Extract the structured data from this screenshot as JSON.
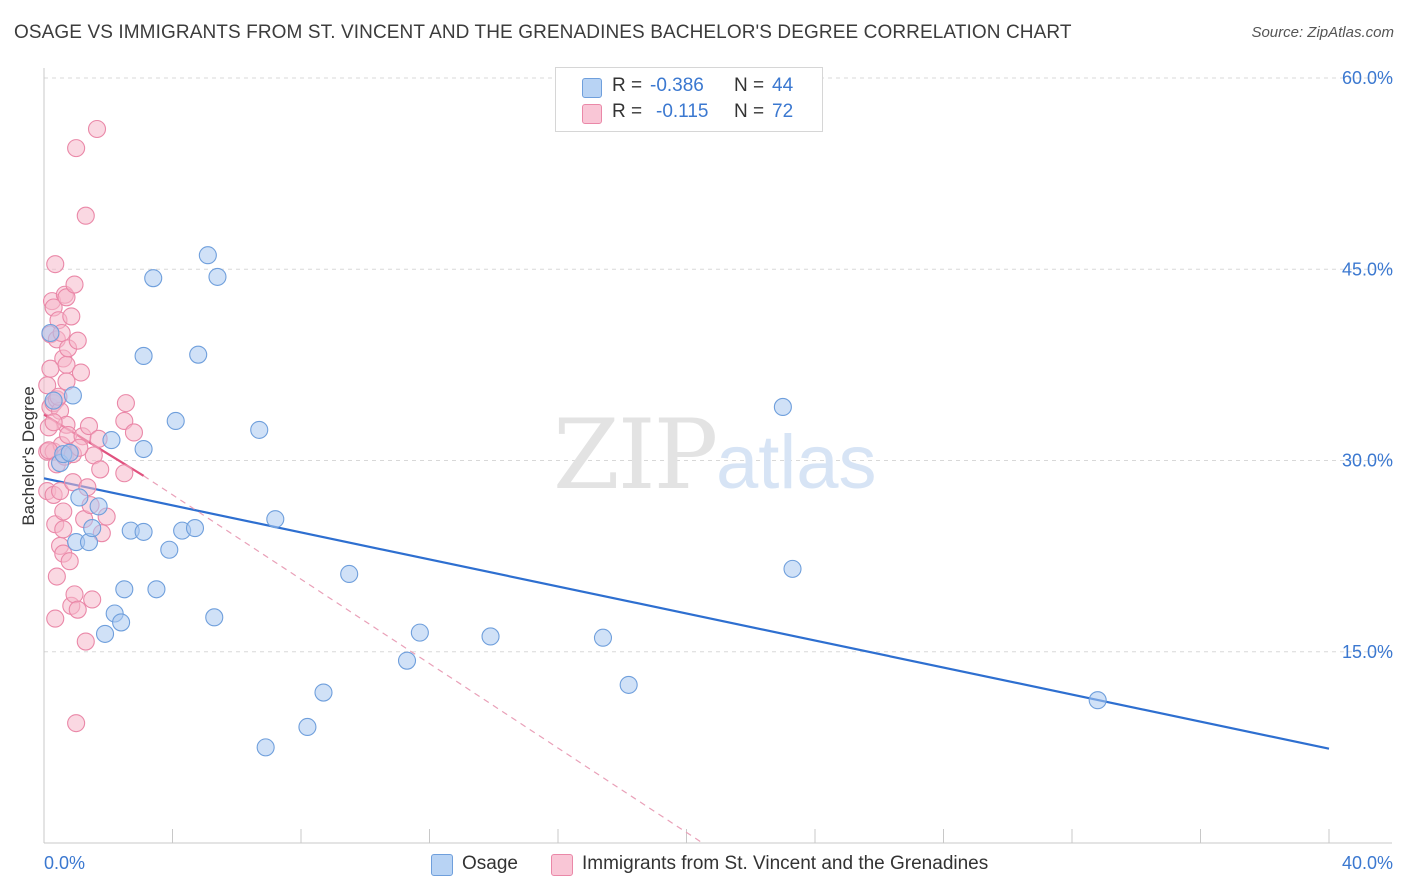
{
  "header": {
    "title": "OSAGE VS IMMIGRANTS FROM ST. VINCENT AND THE GRENADINES BACHELOR'S DEGREE CORRELATION CHART",
    "source": "Source: ZipAtlas.com"
  },
  "watermark": {
    "zip": "ZIP",
    "atlas": "atlas"
  },
  "legend": {
    "rows": [
      {
        "r_label": "R =",
        "r_value": "-0.386",
        "n_label": "N =",
        "n_value": "44"
      },
      {
        "r_label": "R =",
        "r_value": "-0.115",
        "n_label": "N =",
        "n_value": "72"
      }
    ]
  },
  "bottom_legend": {
    "osage": "Osage",
    "immigrants": "Immigrants from St. Vincent and the Grenadines"
  },
  "colors": {
    "osage_fill": "#a9c8f0",
    "osage_stroke": "#6f9fdc",
    "osage_line": "#2e6fd0",
    "imm_fill": "#f6b8cb",
    "imm_stroke": "#ea88a8",
    "imm_line": "#e0527f",
    "tick_text": "#3b78d0",
    "grid": "#d8d8d8"
  },
  "chart_data": {
    "type": "scatter",
    "title": "OSAGE VS IMMIGRANTS FROM ST. VINCENT AND THE GRENADINES BACHELOR'S DEGREE CORRELATION CHART",
    "xlabel": "",
    "ylabel": "Bachelor's Degree",
    "xlim": [
      0,
      40
    ],
    "ylim": [
      0,
      62
    ],
    "x_tick_labels": [
      "0.0%",
      "40.0%"
    ],
    "y_ticks": [
      15,
      30,
      45,
      60
    ],
    "y_tick_labels": [
      "15.0%",
      "30.0%",
      "45.0%",
      "60.0%"
    ],
    "grid": true,
    "legend_position": "top-center",
    "series": [
      {
        "name": "Osage",
        "r": -0.386,
        "n": 44,
        "trend": [
          [
            0,
            28.6
          ],
          [
            40,
            7.4
          ]
        ],
        "points": [
          [
            0.2,
            40.0
          ],
          [
            0.3,
            34.7
          ],
          [
            0.5,
            29.8
          ],
          [
            0.6,
            30.5
          ],
          [
            0.8,
            30.6
          ],
          [
            0.9,
            35.1
          ],
          [
            1.0,
            23.6
          ],
          [
            1.1,
            27.1
          ],
          [
            1.4,
            23.6
          ],
          [
            1.5,
            24.7
          ],
          [
            1.7,
            26.4
          ],
          [
            1.9,
            16.4
          ],
          [
            2.1,
            31.6
          ],
          [
            2.2,
            18.0
          ],
          [
            2.4,
            17.3
          ],
          [
            2.5,
            19.9
          ],
          [
            2.7,
            24.5
          ],
          [
            3.1,
            38.2
          ],
          [
            3.1,
            24.4
          ],
          [
            3.1,
            30.9
          ],
          [
            3.4,
            44.3
          ],
          [
            3.5,
            19.9
          ],
          [
            3.9,
            23.0
          ],
          [
            4.1,
            33.1
          ],
          [
            4.3,
            24.5
          ],
          [
            4.7,
            24.7
          ],
          [
            4.8,
            38.3
          ],
          [
            5.1,
            46.1
          ],
          [
            5.3,
            17.7
          ],
          [
            5.4,
            44.4
          ],
          [
            6.7,
            32.4
          ],
          [
            6.9,
            7.5
          ],
          [
            7.2,
            25.4
          ],
          [
            8.2,
            9.1
          ],
          [
            8.7,
            11.8
          ],
          [
            9.5,
            21.1
          ],
          [
            11.3,
            14.3
          ],
          [
            11.7,
            16.5
          ],
          [
            13.9,
            16.2
          ],
          [
            17.4,
            16.1
          ],
          [
            18.2,
            12.4
          ],
          [
            23.0,
            34.2
          ],
          [
            23.3,
            21.5
          ],
          [
            32.8,
            11.2
          ]
        ]
      },
      {
        "name": "Immigrants from St. Vincent and the Grenadines",
        "r": -0.115,
        "n": 72,
        "trend_solid": [
          [
            0,
            33.6
          ],
          [
            3.1,
            28.8
          ]
        ],
        "trend_dashed": [
          [
            3.1,
            28.8
          ],
          [
            20.5,
            0
          ]
        ],
        "points": [
          [
            0.1,
            35.9
          ],
          [
            0.1,
            30.7
          ],
          [
            0.1,
            27.6
          ],
          [
            0.15,
            32.6
          ],
          [
            0.2,
            37.2
          ],
          [
            0.2,
            39.9
          ],
          [
            0.2,
            34.2
          ],
          [
            0.25,
            42.5
          ],
          [
            0.3,
            42.0
          ],
          [
            0.3,
            30.7
          ],
          [
            0.3,
            27.3
          ],
          [
            0.3,
            34.5
          ],
          [
            0.35,
            45.4
          ],
          [
            0.35,
            25.0
          ],
          [
            0.35,
            17.6
          ],
          [
            0.4,
            39.5
          ],
          [
            0.4,
            34.8
          ],
          [
            0.4,
            29.7
          ],
          [
            0.4,
            20.9
          ],
          [
            0.45,
            41.0
          ],
          [
            0.5,
            33.9
          ],
          [
            0.5,
            23.3
          ],
          [
            0.5,
            27.6
          ],
          [
            0.55,
            40.0
          ],
          [
            0.55,
            31.2
          ],
          [
            0.6,
            38.0
          ],
          [
            0.6,
            24.6
          ],
          [
            0.6,
            22.7
          ],
          [
            0.65,
            43.0
          ],
          [
            0.65,
            30.3
          ],
          [
            0.7,
            42.8
          ],
          [
            0.7,
            37.5
          ],
          [
            0.7,
            36.2
          ],
          [
            0.7,
            32.8
          ],
          [
            0.75,
            38.8
          ],
          [
            0.75,
            32.0
          ],
          [
            0.8,
            22.1
          ],
          [
            0.8,
            30.6
          ],
          [
            0.85,
            18.6
          ],
          [
            0.85,
            41.3
          ],
          [
            0.9,
            28.3
          ],
          [
            0.95,
            43.8
          ],
          [
            0.95,
            19.5
          ],
          [
            1.0,
            54.5
          ],
          [
            1.0,
            9.4
          ],
          [
            1.05,
            39.4
          ],
          [
            1.05,
            18.3
          ],
          [
            1.15,
            36.9
          ],
          [
            1.2,
            31.9
          ],
          [
            1.25,
            25.4
          ],
          [
            1.3,
            49.2
          ],
          [
            1.3,
            15.8
          ],
          [
            1.35,
            27.9
          ],
          [
            1.4,
            32.7
          ],
          [
            1.45,
            26.5
          ],
          [
            1.5,
            19.1
          ],
          [
            1.55,
            30.4
          ],
          [
            1.65,
            56.0
          ],
          [
            1.7,
            31.7
          ],
          [
            1.75,
            29.3
          ],
          [
            1.8,
            24.3
          ],
          [
            1.95,
            25.6
          ],
          [
            2.5,
            29.0
          ],
          [
            2.5,
            33.1
          ],
          [
            2.55,
            34.5
          ],
          [
            2.8,
            32.2
          ],
          [
            0.15,
            30.8
          ],
          [
            0.45,
            35.0
          ],
          [
            0.9,
            30.5
          ],
          [
            0.3,
            33.0
          ],
          [
            0.6,
            26.0
          ],
          [
            1.1,
            31.0
          ]
        ]
      }
    ]
  }
}
